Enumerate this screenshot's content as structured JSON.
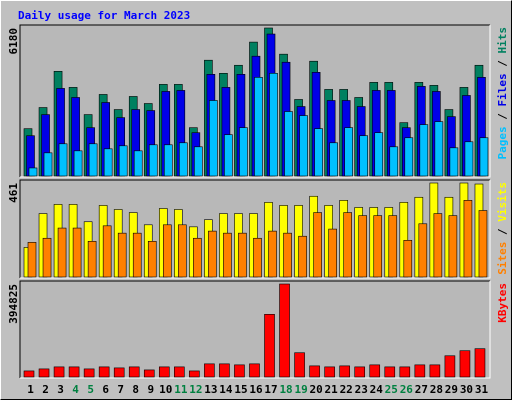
{
  "chart_data": [
    {
      "type": "bar",
      "title": "Daily usage for March 2023",
      "ylim": [
        0,
        6180
      ],
      "yticks": [
        6180
      ],
      "series": [
        {
          "name": "Hits",
          "color": "#008060",
          "values": [
            1976,
            2859,
            4372,
            3700,
            2565,
            3405,
            2775,
            3321,
            3027,
            3826,
            3826,
            2018,
            4835,
            4288,
            4624,
            5591,
            6180,
            5087,
            3195,
            4793,
            3615,
            3615,
            3279,
            3910,
            3910,
            2228,
            3910,
            3784,
            2775,
            3700,
            4624
          ]
        },
        {
          "name": "Files",
          "color": "#0000e8",
          "values": [
            1682,
            2564,
            3657,
            3279,
            2018,
            3069,
            2438,
            2775,
            2733,
            3531,
            3573,
            1808,
            4246,
            3700,
            4246,
            5003,
            5928,
            4751,
            2901,
            4330,
            3153,
            3153,
            2901,
            3573,
            3573,
            2018,
            3742,
            3531,
            2480,
            3363,
            4120
          ]
        },
        {
          "name": "Pages",
          "color": "#00c0ff",
          "values": [
            336,
            967,
            1345,
            1051,
            1345,
            1135,
            1261,
            1051,
            1303,
            1303,
            1387,
            1219,
            3153,
            1724,
            2018,
            4120,
            4288,
            2691,
            2522,
            1976,
            1387,
            2018,
            1682,
            1808,
            1219,
            1597,
            2144,
            2270,
            1177,
            1429,
            1597
          ]
        }
      ]
    },
    {
      "type": "bar",
      "ylim": [
        0,
        461
      ],
      "yticks": [
        461
      ],
      "series": [
        {
          "name": "Visits",
          "color": "#ffff00",
          "values": [
            145,
            311,
            356,
            356,
            271,
            351,
            331,
            316,
            256,
            336,
            331,
            246,
            281,
            311,
            311,
            311,
            366,
            351,
            351,
            396,
            351,
            376,
            341,
            341,
            341,
            366,
            391,
            461,
            391,
            461,
            456
          ]
        },
        {
          "name": "Sites",
          "color": "#ff8000",
          "values": [
            170,
            190,
            240,
            240,
            175,
            251,
            215,
            215,
            175,
            256,
            256,
            190,
            225,
            215,
            215,
            190,
            225,
            215,
            200,
            316,
            235,
            316,
            301,
            301,
            301,
            180,
            261,
            311,
            301,
            376,
            326
          ]
        }
      ]
    },
    {
      "type": "bar",
      "ylim": [
        0,
        394825
      ],
      "yticks": [
        394825
      ],
      "categories": [
        "1",
        "2",
        "3",
        "4",
        "5",
        "6",
        "7",
        "8",
        "9",
        "10",
        "11",
        "12",
        "13",
        "14",
        "15",
        "16",
        "17",
        "18",
        "19",
        "20",
        "21",
        "22",
        "23",
        "24",
        "25",
        "26",
        "27",
        "28",
        "29",
        "30",
        "31"
      ],
      "weekend": [
        "4",
        "5",
        "11",
        "12",
        "18",
        "19",
        "25",
        "26"
      ],
      "weekend_color": "#008040",
      "series": [
        {
          "name": "KBytes",
          "color": "#ff0000",
          "values": [
            25750,
            34340,
            42920,
            42920,
            34340,
            42920,
            38630,
            42920,
            30040,
            42920,
            42920,
            25750,
            55800,
            55800,
            51500,
            55800,
            266100,
            394825,
            103000,
            47210,
            42920,
            47210,
            42920,
            51500,
            42920,
            42920,
            51500,
            51500,
            90130,
            111590,
            120170
          ]
        }
      ]
    }
  ]
}
